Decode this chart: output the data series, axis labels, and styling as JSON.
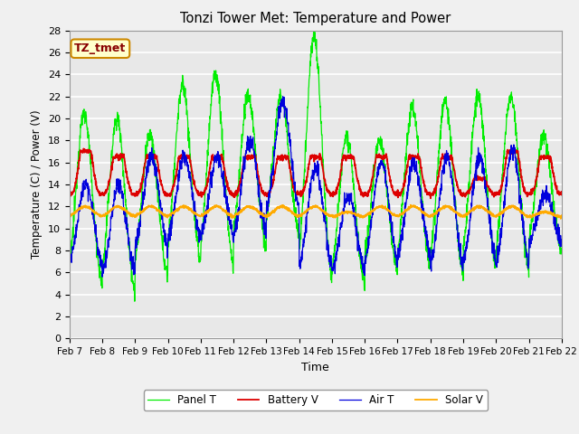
{
  "title": "Tonzi Tower Met: Temperature and Power",
  "xlabel": "Time",
  "ylabel": "Temperature (C) / Power (V)",
  "ylim": [
    0,
    28
  ],
  "yticks": [
    0,
    2,
    4,
    6,
    8,
    10,
    12,
    14,
    16,
    18,
    20,
    22,
    24,
    26,
    28
  ],
  "xtick_labels": [
    "Feb 7",
    "Feb 8",
    "Feb 9",
    "Feb 10",
    "Feb 11",
    "Feb 12",
    "Feb 13",
    "Feb 14",
    "Feb 15",
    "Feb 16",
    "Feb 17",
    "Feb 18",
    "Feb 19",
    "Feb 20",
    "Feb 21",
    "Feb 22"
  ],
  "annotation_text": "TZ_tmet",
  "annotation_color": "#880000",
  "annotation_bg": "#ffffcc",
  "annotation_border": "#cc8800",
  "colors": {
    "panel_t": "#00ee00",
    "battery_v": "#dd0000",
    "air_t": "#0000dd",
    "solar_v": "#ffaa00"
  },
  "legend_labels": [
    "Panel T",
    "Battery V",
    "Air T",
    "Solar V"
  ],
  "plot_bg": "#e8e8e8",
  "n_days": 15,
  "pts_per_day": 144
}
